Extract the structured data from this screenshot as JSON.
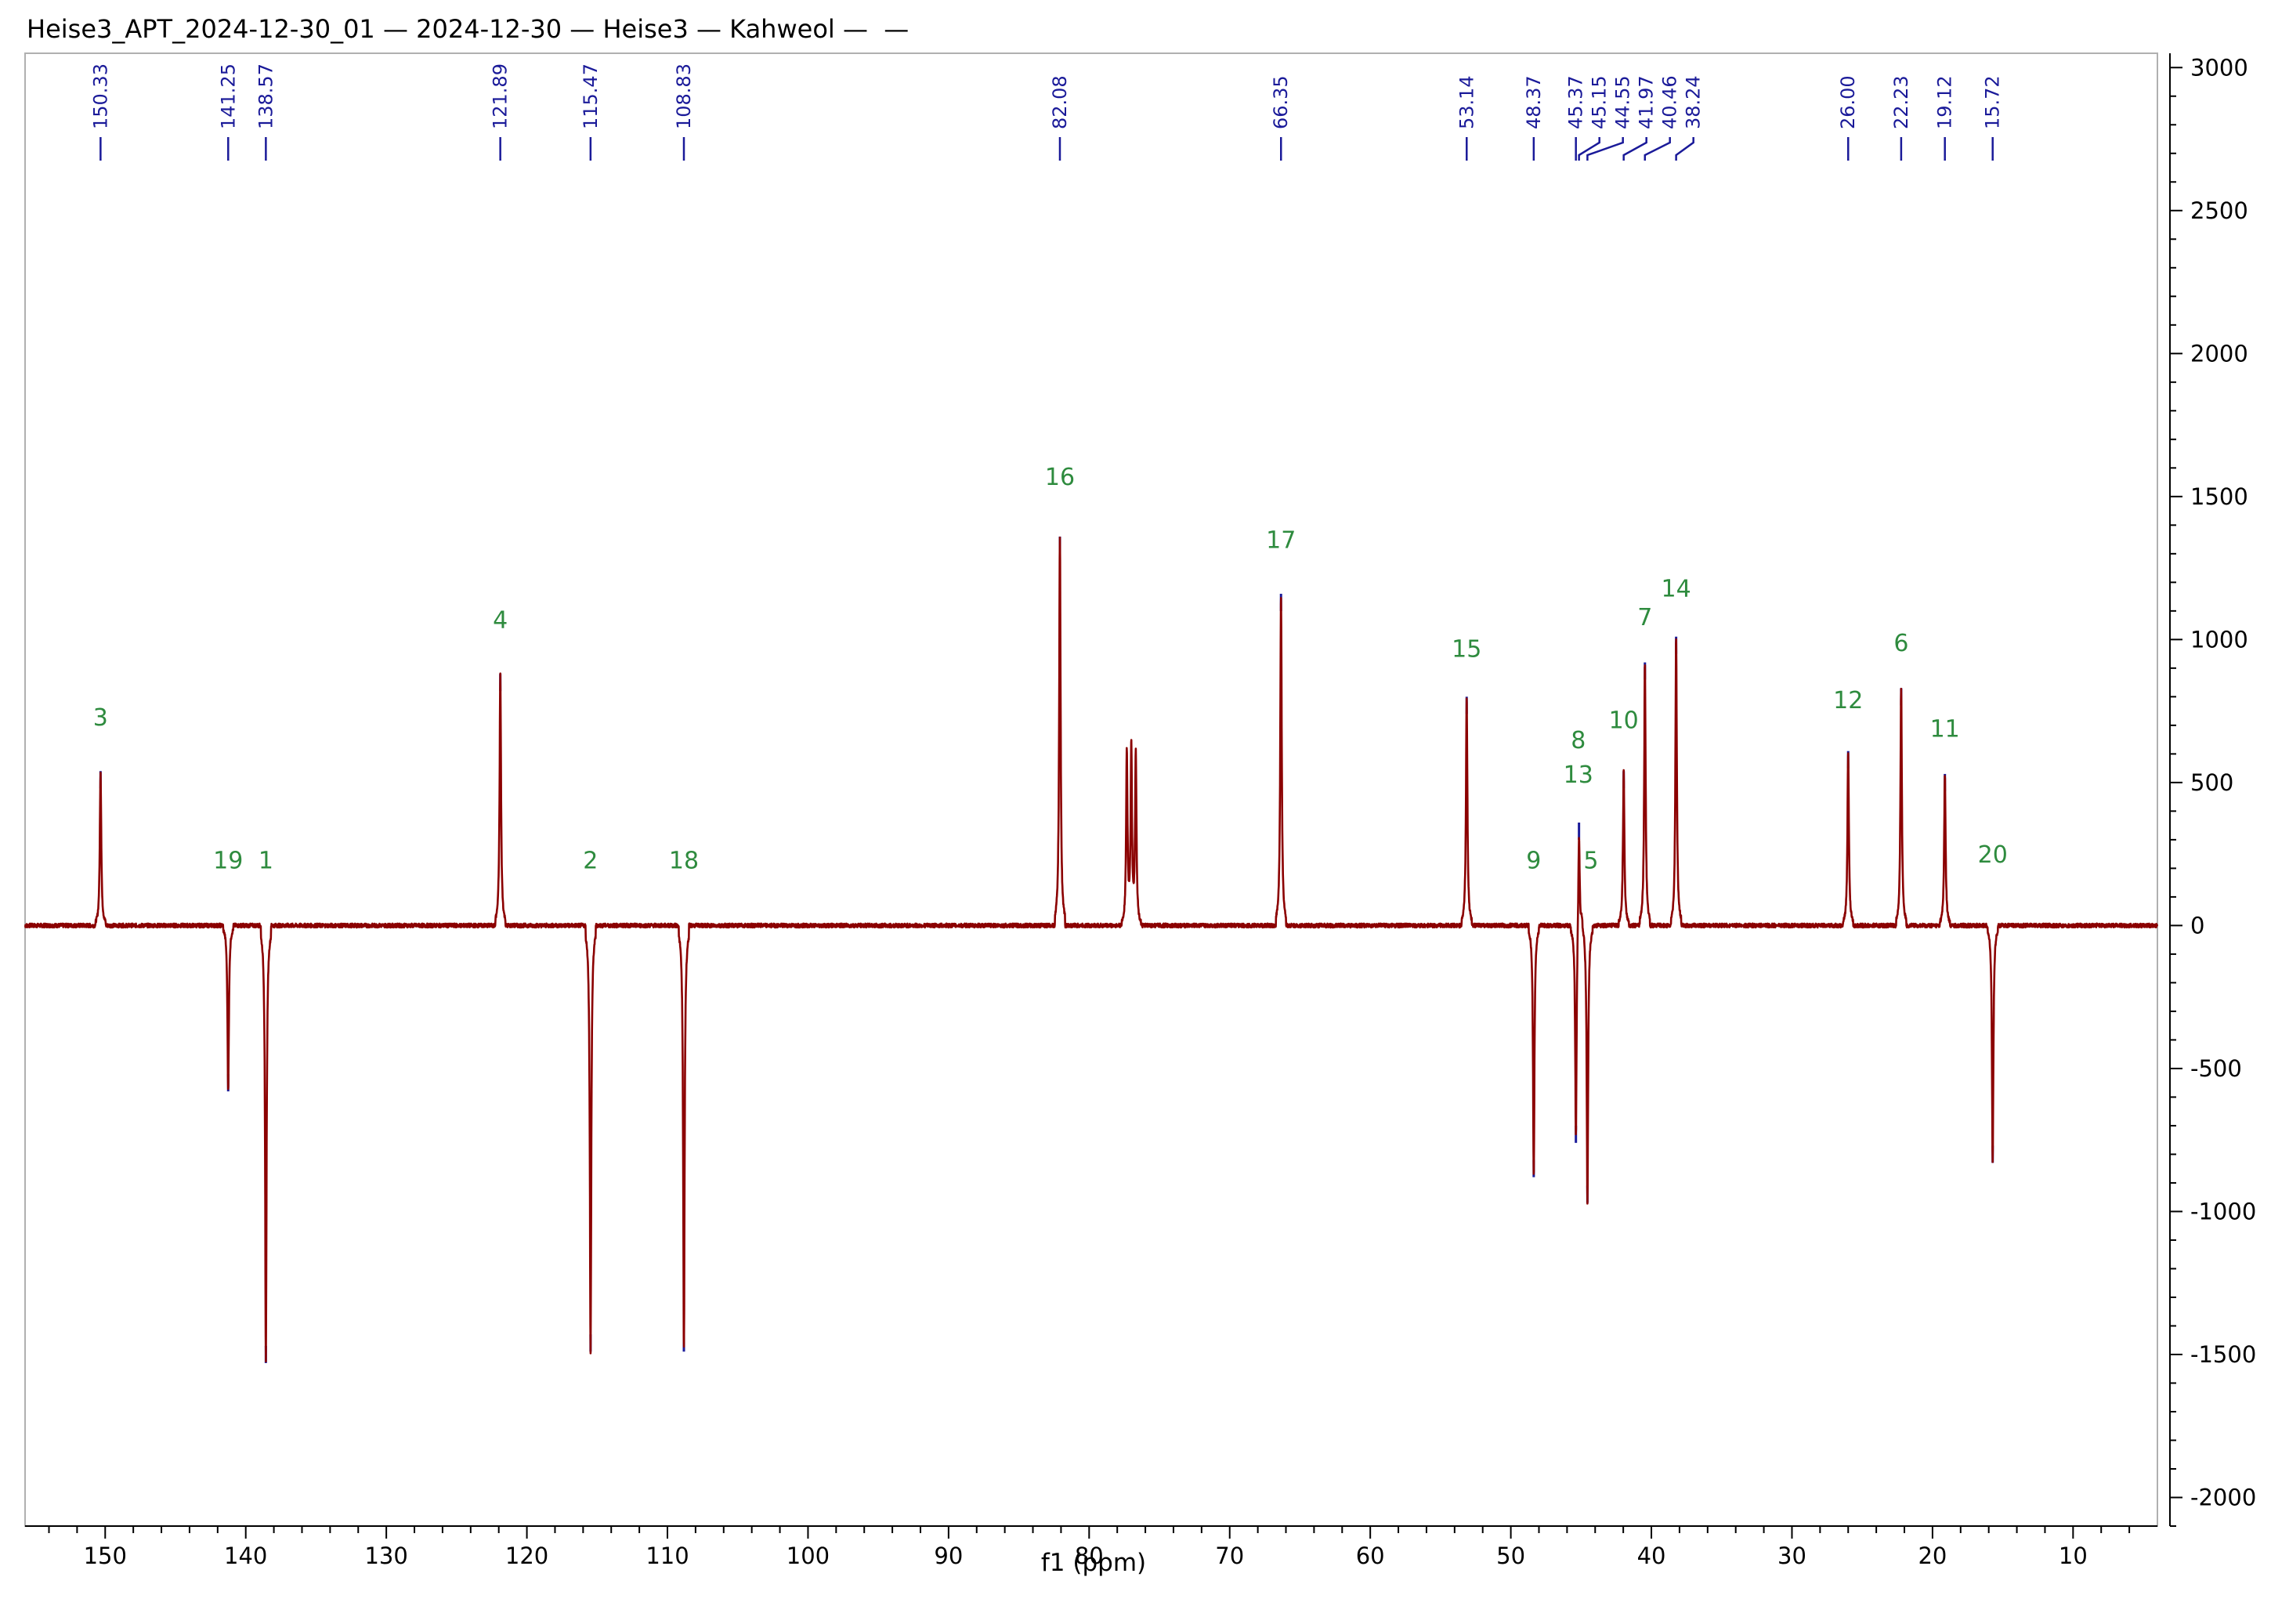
{
  "title": "Heise3_APT_2024-12-30_01 — 2024-12-30 — Heise3 — Kahweol —  —",
  "colors": {
    "trace": "#8b0000",
    "peak_marker": "#1a1a99",
    "atom_label": "#2e8b3e",
    "frame": "#b0b0b0",
    "axis": "#000000"
  },
  "chart_data": {
    "type": "line",
    "title": "Heise3_APT_2024-12-30_01 — 2024-12-30 — Heise3 — Kahweol —  —",
    "xlabel": "f1 (ppm)",
    "ylabel": "",
    "xlim": [
      155.7,
      4.0
    ],
    "ylim": [
      -2100,
      3050
    ],
    "x_ticks": [
      150,
      140,
      130,
      120,
      110,
      100,
      90,
      80,
      70,
      60,
      50,
      40,
      30,
      20,
      10
    ],
    "x_tick_labels": [
      "150",
      "140",
      "130",
      "120",
      "110",
      "100",
      "90",
      "80",
      "70",
      "60",
      "50",
      "40",
      "30",
      "20",
      "10"
    ],
    "y_ticks": [
      3000,
      2500,
      2000,
      1500,
      1000,
      500,
      0,
      -500,
      -1000,
      -1500,
      -2000
    ],
    "y_tick_labels": [
      "3000",
      "2500",
      "2000",
      "1500",
      "1000",
      "500",
      "0",
      "-500",
      "-1000",
      "-1500",
      "-2000"
    ],
    "peaks": [
      {
        "ppm": 150.33,
        "label": "150.33",
        "intensity": 540
      },
      {
        "ppm": 141.25,
        "label": "141.25",
        "intensity": -580
      },
      {
        "ppm": 138.57,
        "label": "138.57",
        "intensity": -1530
      },
      {
        "ppm": 121.89,
        "label": "121.89",
        "intensity": 880
      },
      {
        "ppm": 115.47,
        "label": "115.47",
        "intensity": -1490
      },
      {
        "ppm": 108.83,
        "label": "108.83",
        "intensity": -1490
      },
      {
        "ppm": 82.08,
        "label": "82.08",
        "intensity": 1360
      },
      {
        "ppm": 66.35,
        "label": "66.35",
        "intensity": 1160
      },
      {
        "ppm": 53.14,
        "label": "53.14",
        "intensity": 800
      },
      {
        "ppm": 48.37,
        "label": "48.37",
        "intensity": -880
      },
      {
        "ppm": 45.37,
        "label": "45.37",
        "intensity": -760
      },
      {
        "ppm": 45.15,
        "label": "45.15",
        "intensity": 360
      },
      {
        "ppm": 44.55,
        "label": "44.55",
        "intensity": -970
      },
      {
        "ppm": 41.97,
        "label": "41.97",
        "intensity": 540
      },
      {
        "ppm": 40.46,
        "label": "40.46",
        "intensity": 920
      },
      {
        "ppm": 38.24,
        "label": "38.24",
        "intensity": 1010
      },
      {
        "ppm": 26.0,
        "label": "26.00",
        "intensity": 610
      },
      {
        "ppm": 22.23,
        "label": "22.23",
        "intensity": 830
      },
      {
        "ppm": 19.12,
        "label": "19.12",
        "intensity": 530
      },
      {
        "ppm": 15.72,
        "label": "15.72",
        "intensity": -830
      }
    ],
    "solvent_peaks": [
      {
        "ppm": 77.32,
        "intensity": 600
      },
      {
        "ppm": 77.0,
        "intensity": 610
      },
      {
        "ppm": 76.68,
        "intensity": 600
      }
    ],
    "atom_labels": [
      {
        "text": "3",
        "ppm": 150.33,
        "intensity": 700
      },
      {
        "text": "19",
        "ppm": 141.25,
        "intensity": 200
      },
      {
        "text": "1",
        "ppm": 138.57,
        "intensity": 200
      },
      {
        "text": "4",
        "ppm": 121.89,
        "intensity": 1040
      },
      {
        "text": "2",
        "ppm": 115.47,
        "intensity": 200
      },
      {
        "text": "18",
        "ppm": 108.83,
        "intensity": 200
      },
      {
        "text": "16",
        "ppm": 82.08,
        "intensity": 1540
      },
      {
        "text": "17",
        "ppm": 66.35,
        "intensity": 1320
      },
      {
        "text": "15",
        "ppm": 53.14,
        "intensity": 940
      },
      {
        "text": "9",
        "ppm": 48.37,
        "intensity": 200
      },
      {
        "text": "8",
        "ppm": 45.2,
        "intensity": 620
      },
      {
        "text": "13",
        "ppm": 45.2,
        "intensity": 500
      },
      {
        "text": "5",
        "ppm": 44.3,
        "intensity": 200
      },
      {
        "text": "10",
        "ppm": 41.97,
        "intensity": 690
      },
      {
        "text": "7",
        "ppm": 40.46,
        "intensity": 1050
      },
      {
        "text": "14",
        "ppm": 38.24,
        "intensity": 1150
      },
      {
        "text": "12",
        "ppm": 26.0,
        "intensity": 760
      },
      {
        "text": "6",
        "ppm": 22.23,
        "intensity": 960
      },
      {
        "text": "11",
        "ppm": 19.12,
        "intensity": 660
      },
      {
        "text": "20",
        "ppm": 15.72,
        "intensity": 220
      }
    ]
  }
}
